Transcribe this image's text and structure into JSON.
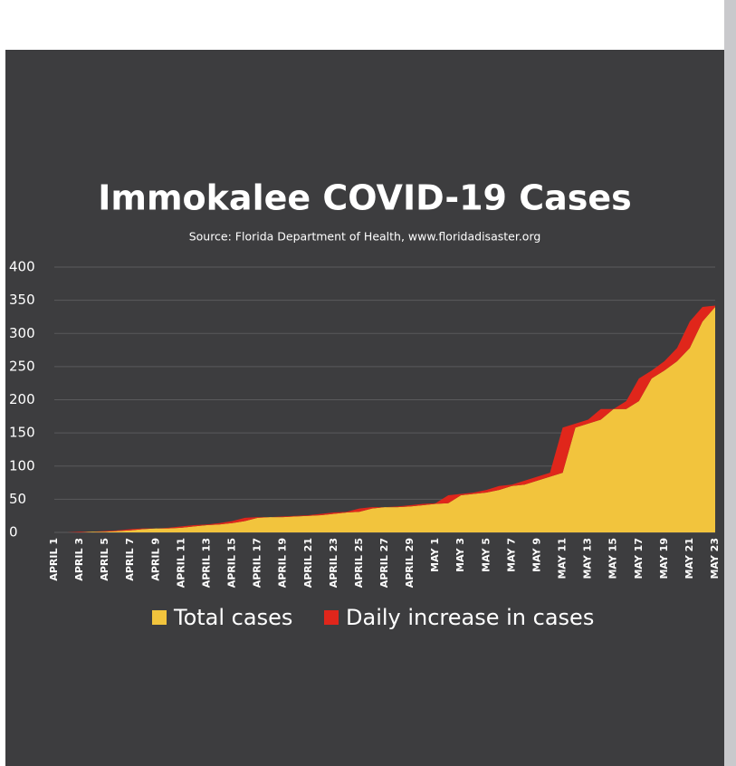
{
  "chart_data": {
    "type": "stacked-area",
    "title": "Immokalee COVID-19 Cases",
    "subtitle": "Source: Florida Department of Health, www.floridadisaster.org",
    "categories": [
      "APRIL 1",
      null,
      "APRIL 3",
      null,
      "APRIL 5",
      null,
      "APRIL 7",
      null,
      "APRIL 9",
      null,
      "APRIL 11",
      null,
      "APRIL 13",
      null,
      "APRIL 15",
      null,
      "APRIL 17",
      null,
      "APRIL 19",
      null,
      "APRIL 21",
      null,
      "APRIL 23",
      null,
      "APRIL 25",
      null,
      "APRIL 27",
      null,
      "APRIL 29",
      null,
      "MAY 1",
      null,
      "MAY 3",
      null,
      "MAY 5",
      null,
      "MAY 7",
      null,
      "MAY 9",
      null,
      "MAY 11",
      null,
      "MAY 13",
      null,
      "MAY 15",
      null,
      "MAY 17",
      null,
      "MAY 19",
      null,
      "MAY 21",
      null,
      "MAY 23"
    ],
    "series": [
      {
        "name": "Total cases",
        "color": "#f2c43d",
        "values": [
          0,
          0,
          0,
          1,
          1,
          2,
          3,
          5,
          6,
          6,
          7,
          9,
          11,
          12,
          14,
          17,
          22,
          23,
          23,
          24,
          25,
          26,
          28,
          30,
          31,
          36,
          38,
          38,
          39,
          41,
          43,
          44,
          56,
          58,
          60,
          64,
          70,
          72,
          78,
          84,
          90,
          158,
          164,
          170,
          186,
          186,
          198,
          232,
          244,
          258,
          278,
          318,
          340
        ]
      },
      {
        "name": "Daily increase in cases",
        "color": "#e0261b",
        "values": [
          0,
          0,
          1,
          0,
          1,
          1,
          2,
          1,
          0,
          1,
          2,
          2,
          1,
          2,
          3,
          5,
          1,
          0,
          1,
          1,
          1,
          2,
          2,
          1,
          5,
          2,
          0,
          1,
          2,
          2,
          1,
          12,
          2,
          2,
          4,
          6,
          2,
          6,
          6,
          6,
          68,
          6,
          6,
          16,
          0,
          12,
          34,
          12,
          14,
          20,
          40,
          22,
          2
        ]
      }
    ],
    "ylim": [
      0,
      400
    ],
    "yticks": [
      0,
      50,
      100,
      150,
      200,
      250,
      300,
      350,
      400
    ],
    "grid": true
  }
}
